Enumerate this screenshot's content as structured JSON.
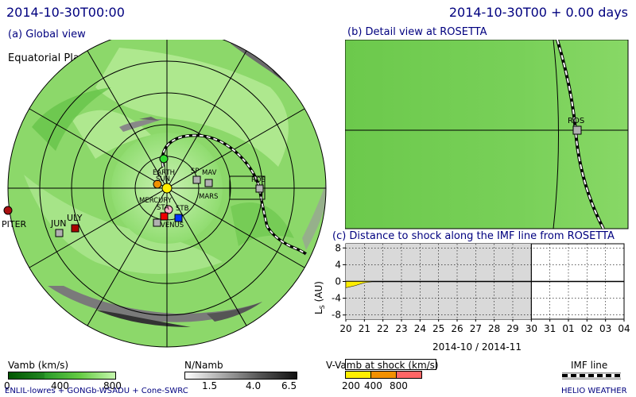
{
  "header": {
    "time_left": "2014-10-30T00:00",
    "time_right": "2014-10-30T00 + 0.00 days"
  },
  "panel_a": {
    "title": "(a) Global view",
    "plane_label": "Equatorial Plane",
    "labels": {
      "earth": "EARTH",
      "sun": "SUN",
      "mercury": "MERCURY",
      "sp": "SP",
      "mav": "MAV",
      "mars": "MARS",
      "ros": "ROS",
      "sta": "STA",
      "stb": "STB",
      "venus": "VENUS",
      "jun": "JUN",
      "uly": "ULY",
      "jupiter": "PITER"
    }
  },
  "panel_b": {
    "title": "(b) Detail view at ROSETTA",
    "ros_label": "ROS"
  },
  "panel_c": {
    "title": "(c) Distance to shock along the IMF line from ROSETTA",
    "ylabel": "L",
    "ylabel_sub": "S",
    "ylabel_unit": "(AU)",
    "xlabel": "2014-10 / 2014-11",
    "yticks": [
      "8",
      "4",
      "0",
      "-4",
      "-8"
    ],
    "xticks": [
      "20",
      "21",
      "22",
      "23",
      "24",
      "25",
      "26",
      "27",
      "28",
      "29",
      "30",
      "31",
      "01",
      "02",
      "03",
      "04"
    ]
  },
  "chart_data": {
    "type": "area",
    "title": "(c) Distance to shock along the IMF line from ROSETTA",
    "xlabel": "2014-10 / 2014-11",
    "ylabel": "Ls (AU)",
    "ylim": [
      -9,
      9
    ],
    "x": [
      "2014-10-20",
      "2014-10-20T12",
      "2014-10-21",
      "2014-10-21T12",
      "2014-10-22"
    ],
    "series": [
      {
        "values": [
          -1.5,
          -1.0,
          -0.3,
          0,
          0
        ]
      }
    ],
    "grid": true,
    "shaded_past_until": "2014-10-30"
  },
  "legends": {
    "vamb_title": "Vamb (km/s)",
    "vamb_ticks": [
      "0",
      "400",
      "800"
    ],
    "namb_title": "N/Namb",
    "namb_ticks": [
      "1.5",
      "4.0",
      "6.5"
    ],
    "shock_title": "V-Vamb at shock (km/s)",
    "shock_ticks": [
      "200",
      "400",
      "800"
    ],
    "imf_title": "IMF line"
  },
  "footer": {
    "left": "ENLIL-lowres + GONGb-WSADU + Cone-SWRC",
    "right": "HELIO WEATHER"
  },
  "colors": {
    "title": "#00007f",
    "green": "#66cc44",
    "shock_yellow": "#ffee00",
    "shock_orange": "#f29000",
    "shock_red": "#ff6666"
  }
}
